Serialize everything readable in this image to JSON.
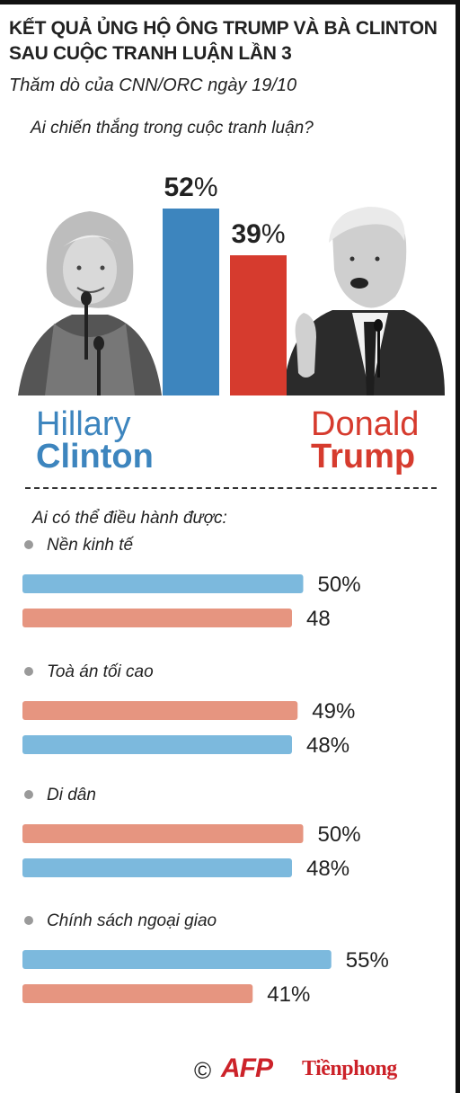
{
  "header": {
    "title": "KẾT QUẢ ỦNG HỘ ÔNG TRUMP VÀ BÀ CLINTON SAU CUỘC TRANH LUẬN LẦN 3",
    "subtitle": "Thăm dò của CNN/ORC ngày 19/10"
  },
  "colors": {
    "clinton": "#3d85be",
    "trump": "#d63b2e",
    "clinton_light": "#7cb9dd",
    "trump_light": "#e69580"
  },
  "candidates": {
    "clinton": {
      "first": "Hillary",
      "last": "Clinton",
      "photo_icon": "clinton-portrait-icon"
    },
    "trump": {
      "first": "Donald",
      "last": "Trump",
      "photo_icon": "trump-portrait-icon"
    }
  },
  "chart_data": [
    {
      "type": "bar",
      "title": "Ai chiến thắng trong cuộc tranh luận?",
      "categories": [
        "Hillary Clinton",
        "Donald Trump"
      ],
      "values": [
        52,
        39
      ],
      "labels": [
        "52%",
        "39%"
      ],
      "colors": [
        "#3d85be",
        "#d63b2e"
      ]
    },
    {
      "type": "bar",
      "orientation": "horizontal",
      "title": "Ai có thể điều hành được:",
      "groups": [
        {
          "label": "Nền kinh tế",
          "bars": [
            {
              "candidate": "clinton",
              "value": 50,
              "label": "50%"
            },
            {
              "candidate": "trump",
              "value": 48,
              "label": "48"
            }
          ]
        },
        {
          "label": "Toà án tối cao",
          "bars": [
            {
              "candidate": "trump",
              "value": 49,
              "label": "49%"
            },
            {
              "candidate": "clinton",
              "value": 48,
              "label": "48%"
            }
          ]
        },
        {
          "label": "Di dân",
          "bars": [
            {
              "candidate": "trump",
              "value": 50,
              "label": "50%"
            },
            {
              "candidate": "clinton",
              "value": 48,
              "label": "48%"
            }
          ]
        },
        {
          "label": "Chính sách ngoại giao",
          "bars": [
            {
              "candidate": "clinton",
              "value": 55,
              "label": "55%"
            },
            {
              "candidate": "trump",
              "value": 41,
              "label": "41%"
            }
          ]
        }
      ]
    }
  ],
  "footer": {
    "copyright": "©",
    "agency": "AFP",
    "publisher": "Tiềnphong"
  }
}
